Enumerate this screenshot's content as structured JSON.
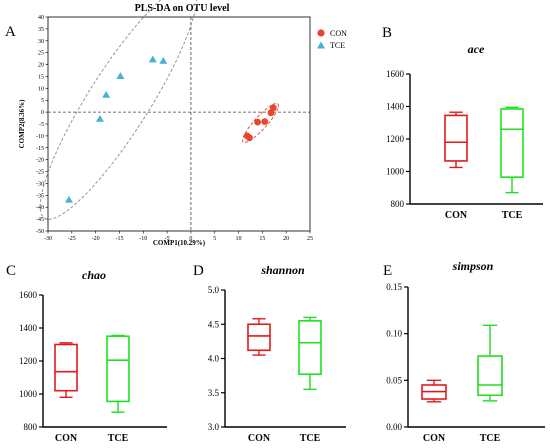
{
  "colors": {
    "con": "#e31a1c",
    "tce": "#22dd22",
    "scatter_con": "#e8452c",
    "scatter_tce": "#45b3d6"
  },
  "chart_data": [
    {
      "id": "A",
      "type": "scatter",
      "panel_label": "A",
      "title": "PLS-DA on OTU level",
      "xlabel": "COMP1(10.29%)",
      "ylabel": "COMP2(8.36%)",
      "xlim": [
        -30,
        25
      ],
      "ylim": [
        -50,
        40
      ],
      "xticks": [
        "-30",
        "-25",
        "-20",
        "-15",
        "-10",
        "-5",
        "0",
        "5",
        "10",
        "15",
        "20",
        "25"
      ],
      "yticks": [
        "40",
        "35",
        "30",
        "25",
        "20",
        "15",
        "10",
        "5",
        "0",
        "-5",
        "-10",
        "-15",
        "-20",
        "-25",
        "-30",
        "-35",
        "-40",
        "-45",
        "-50"
      ],
      "reference_lines": {
        "x": 0,
        "y": 0,
        "style": "dashed"
      },
      "legend": {
        "position": "top-right",
        "entries": [
          "CON",
          "TCE"
        ]
      },
      "series": [
        {
          "name": "CON",
          "marker": "circle",
          "color": "#e8452c",
          "x": [
            11.8,
            12.3,
            14.0,
            15.5,
            16.8,
            17.3
          ],
          "y": [
            -10.0,
            -10.8,
            -4.2,
            -4.0,
            -0.3,
            1.8
          ]
        },
        {
          "name": "TCE",
          "marker": "triangle",
          "color": "#45b3d6",
          "x": [
            -25.6,
            -19.1,
            -17.8,
            -14.8,
            -8.0,
            -5.8
          ],
          "y": [
            -36.8,
            -2.8,
            7.3,
            15.2,
            22.2,
            21.6
          ]
        }
      ]
    },
    {
      "id": "B",
      "type": "box",
      "panel_label": "B",
      "title": "ace",
      "categories": [
        "CON",
        "TCE"
      ],
      "ylim": [
        800,
        1600
      ],
      "yticks": [
        "800",
        "1000",
        "1200",
        "1400",
        "1600"
      ],
      "boxes": [
        {
          "name": "CON",
          "min": 1025,
          "q1": 1065,
          "median": 1180,
          "q3": 1345,
          "max": 1365
        },
        {
          "name": "TCE",
          "min": 870,
          "q1": 965,
          "median": 1260,
          "q3": 1385,
          "max": 1395
        }
      ]
    },
    {
      "id": "C",
      "type": "box",
      "panel_label": "C",
      "title": "chao",
      "categories": [
        "CON",
        "TCE"
      ],
      "ylim": [
        800,
        1600
      ],
      "yticks": [
        "800",
        "1000",
        "1200",
        "1400",
        "1600"
      ],
      "boxes": [
        {
          "name": "CON",
          "min": 980,
          "q1": 1020,
          "median": 1135,
          "q3": 1300,
          "max": 1310
        },
        {
          "name": "TCE",
          "min": 890,
          "q1": 955,
          "median": 1205,
          "q3": 1350,
          "max": 1355
        }
      ]
    },
    {
      "id": "D",
      "type": "box",
      "panel_label": "D",
      "title": "shannon",
      "categories": [
        "CON",
        "TCE"
      ],
      "ylim": [
        3.0,
        5.0
      ],
      "yticks": [
        "3.0",
        "3.5",
        "4.0",
        "4.5",
        "5.0"
      ],
      "boxes": [
        {
          "name": "CON",
          "min": 4.05,
          "q1": 4.12,
          "median": 4.33,
          "q3": 4.5,
          "max": 4.58
        },
        {
          "name": "TCE",
          "min": 3.55,
          "q1": 3.77,
          "median": 4.23,
          "q3": 4.55,
          "max": 4.6
        }
      ]
    },
    {
      "id": "E",
      "type": "box",
      "panel_label": "E",
      "title": "simpson",
      "categories": [
        "CON",
        "TCE"
      ],
      "ylim": [
        0.0,
        0.15
      ],
      "yticks": [
        "0.00",
        "0.05",
        "0.10",
        "0.15"
      ],
      "boxes": [
        {
          "name": "CON",
          "min": 0.027,
          "q1": 0.03,
          "median": 0.038,
          "q3": 0.045,
          "max": 0.05
        },
        {
          "name": "TCE",
          "min": 0.028,
          "q1": 0.034,
          "median": 0.045,
          "q3": 0.076,
          "max": 0.109
        }
      ]
    }
  ]
}
